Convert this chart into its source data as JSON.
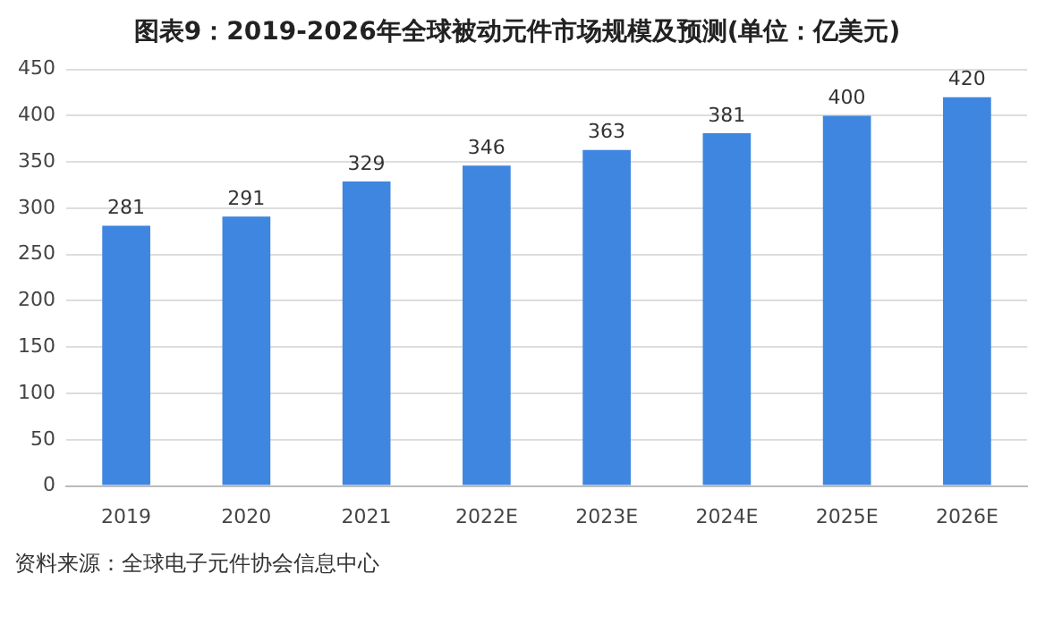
{
  "chart_data": {
    "type": "bar",
    "title": "图表9：2019-2026年全球被动元件市场规模及预测(单位：亿美元)",
    "categories": [
      "2019",
      "2020",
      "2021",
      "2022E",
      "2023E",
      "2024E",
      "2025E",
      "2026E"
    ],
    "values": [
      281,
      291,
      329,
      346,
      363,
      381,
      400,
      420
    ],
    "color": "#3f86e0",
    "ylim": [
      0,
      450
    ],
    "yticks": [
      0,
      50,
      100,
      150,
      200,
      250,
      300,
      350,
      400,
      450
    ],
    "grid": "y",
    "data_labels": true,
    "annotations": [
      "资料来源：全球电子元件协会信息中心"
    ]
  }
}
